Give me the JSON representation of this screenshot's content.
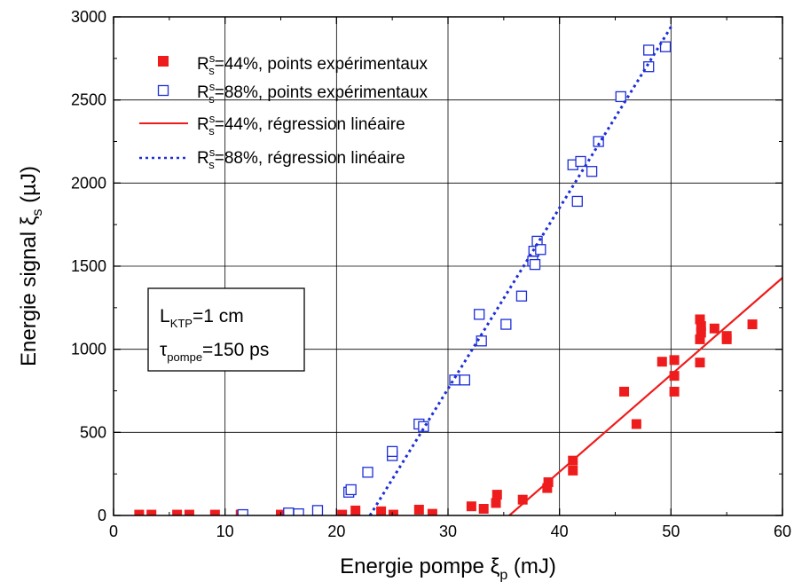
{
  "chart_data": {
    "type": "scatter",
    "xlabel": "Energie pompe ξp (mJ)",
    "ylabel": "Energie signal ξs (µJ)",
    "xlim": [
      0,
      60
    ],
    "ylim": [
      0,
      3000
    ],
    "xticks": [
      0,
      10,
      20,
      30,
      40,
      50,
      60
    ],
    "yticks": [
      0,
      500,
      1000,
      1500,
      2000,
      2500,
      3000
    ],
    "grid": true,
    "legend_position": "top-left",
    "series": [
      {
        "name": "R^s_s=44%, points expérimentaux",
        "kind": "scatter",
        "marker": "filled-square",
        "color": "#ee1c1c",
        "points": [
          [
            2.3,
            5
          ],
          [
            3.4,
            5
          ],
          [
            5.7,
            5
          ],
          [
            6.8,
            5
          ],
          [
            9.1,
            5
          ],
          [
            11.4,
            5
          ],
          [
            15.0,
            5
          ],
          [
            16.0,
            10
          ],
          [
            20.5,
            5
          ],
          [
            21.7,
            30
          ],
          [
            24.0,
            25
          ],
          [
            25.1,
            5
          ],
          [
            27.4,
            35
          ],
          [
            28.6,
            10
          ],
          [
            32.1,
            55
          ],
          [
            33.2,
            40
          ],
          [
            34.3,
            75
          ],
          [
            34.4,
            125
          ],
          [
            36.7,
            95
          ],
          [
            38.9,
            165
          ],
          [
            39.0,
            200
          ],
          [
            41.2,
            270
          ],
          [
            41.2,
            330
          ],
          [
            45.8,
            745
          ],
          [
            46.9,
            550
          ],
          [
            49.2,
            925
          ],
          [
            50.3,
            935
          ],
          [
            50.3,
            840
          ],
          [
            50.3,
            745
          ],
          [
            52.6,
            1180
          ],
          [
            52.7,
            1140
          ],
          [
            52.7,
            1100
          ],
          [
            52.6,
            1060
          ],
          [
            52.6,
            920
          ],
          [
            53.9,
            1125
          ],
          [
            55.0,
            1080
          ],
          [
            55.0,
            1060
          ],
          [
            57.3,
            1150
          ]
        ]
      },
      {
        "name": "R^s_s=88%, points expérimentaux",
        "kind": "scatter",
        "marker": "open-square",
        "color": "#1c2ed8",
        "points": [
          [
            11.6,
            5
          ],
          [
            15.7,
            15
          ],
          [
            16.6,
            10
          ],
          [
            18.3,
            30
          ],
          [
            21.1,
            140
          ],
          [
            21.3,
            155
          ],
          [
            22.8,
            260
          ],
          [
            25.0,
            360
          ],
          [
            25.0,
            385
          ],
          [
            27.4,
            550
          ],
          [
            27.8,
            535
          ],
          [
            30.6,
            815
          ],
          [
            31.5,
            815
          ],
          [
            32.8,
            1210
          ],
          [
            33.0,
            1050
          ],
          [
            35.2,
            1150
          ],
          [
            36.6,
            1320
          ],
          [
            37.6,
            1530
          ],
          [
            37.7,
            1590
          ],
          [
            37.8,
            1510
          ],
          [
            38.0,
            1650
          ],
          [
            38.3,
            1600
          ],
          [
            41.2,
            2110
          ],
          [
            41.6,
            1890
          ],
          [
            41.9,
            2130
          ],
          [
            42.9,
            2070
          ],
          [
            43.5,
            2250
          ],
          [
            45.5,
            2520
          ],
          [
            48.0,
            2700
          ],
          [
            48.0,
            2800
          ],
          [
            49.5,
            2820
          ]
        ]
      },
      {
        "name": "R^s_s=44%, régression linéaire",
        "kind": "line",
        "style": "solid",
        "color": "#ee1c1c",
        "points": [
          [
            35.5,
            0
          ],
          [
            60,
            1430
          ]
        ]
      },
      {
        "name": "R^s_s=88%, régression linéaire",
        "kind": "line",
        "style": "dotted",
        "color": "#1c2ed8",
        "points": [
          [
            23.0,
            0
          ],
          [
            50.1,
            2950
          ]
        ]
      }
    ],
    "annotation": {
      "line1": "LKTP=1 cm",
      "line2": "τpompe=150 ps"
    }
  },
  "labels": {
    "xlabel_main": "Energie pompe ξ",
    "xlabel_sub": "p",
    "xlabel_tail": " (mJ)",
    "ylabel_main": "Energie signal ξ",
    "ylabel_sub": "s",
    "ylabel_tail": " (µJ)",
    "legend": [
      {
        "r": "R",
        "sup": "s",
        "sub": "s",
        "text": "=44%, points expérimentaux"
      },
      {
        "r": "R",
        "sup": "s",
        "sub": "s",
        "text": "=88%, points expérimentaux"
      },
      {
        "r": "R",
        "sup": "s",
        "sub": "s",
        "text": "=44%, régression linéaire"
      },
      {
        "r": "R",
        "sup": "s",
        "sub": "s",
        "text": "=88%, régression linéaire"
      }
    ],
    "annotation": {
      "l_main": "L",
      "l_sub": "KTP",
      "l_tail": "=1 cm",
      "tau_main": "τ",
      "tau_sub": "pompe",
      "tau_tail": "=150 ps"
    }
  }
}
